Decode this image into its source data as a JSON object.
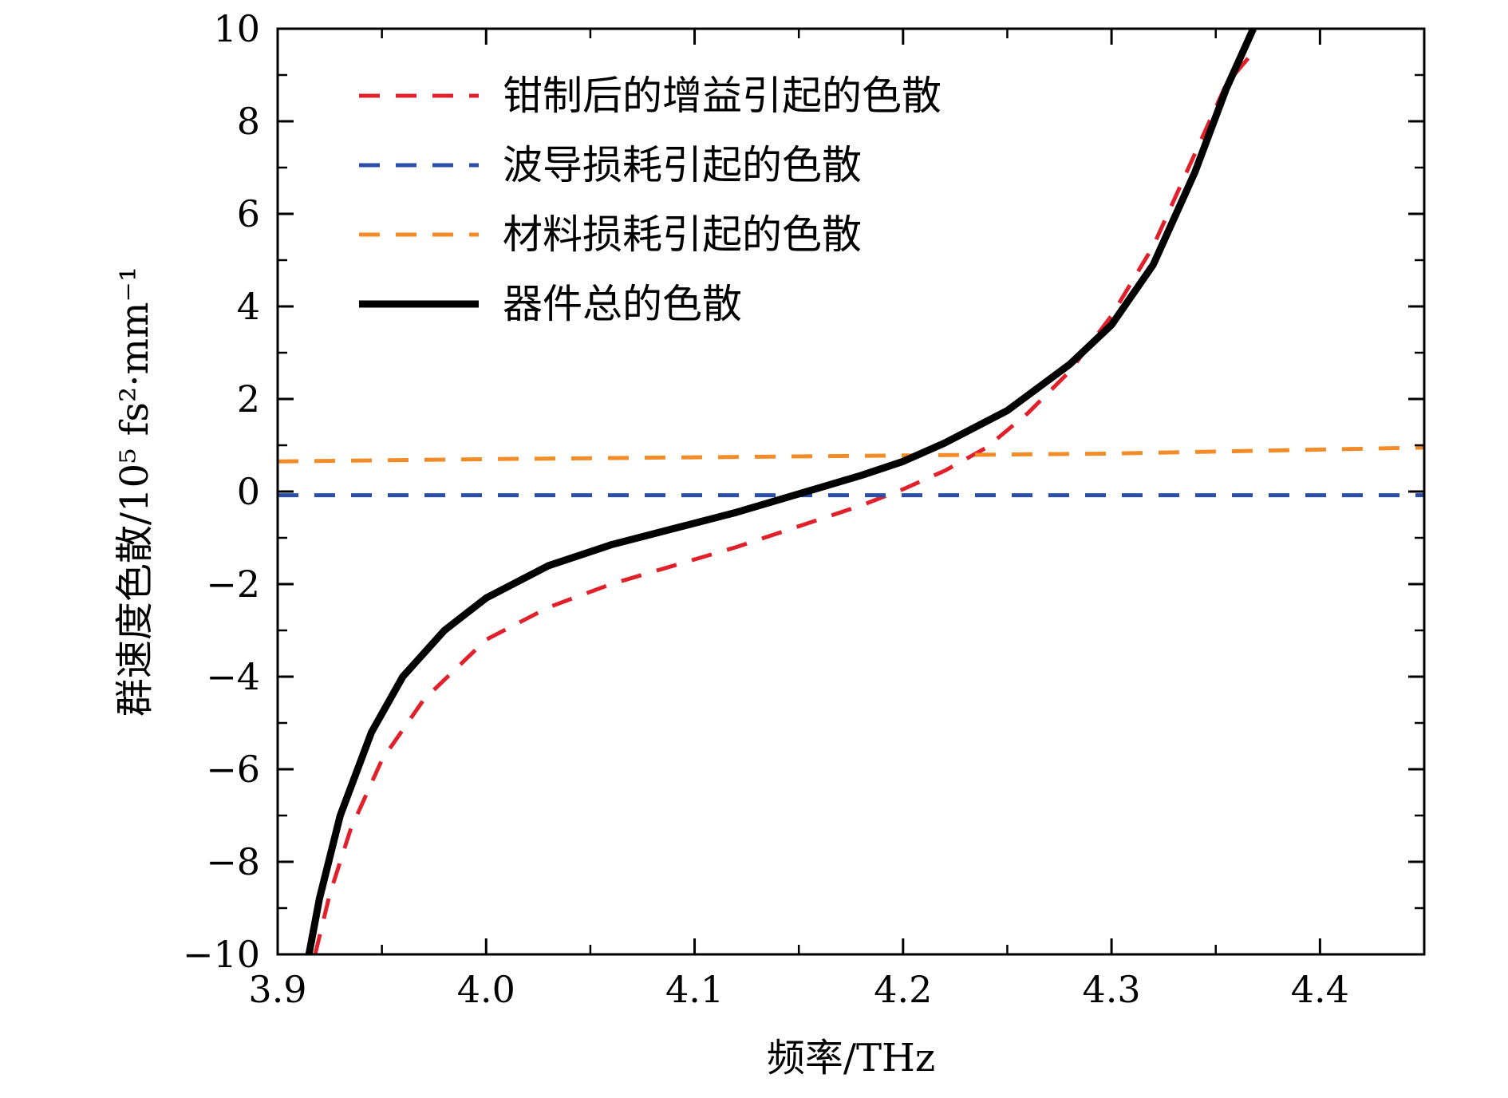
{
  "chart_data": {
    "type": "line",
    "xlabel": "频率/THz",
    "ylabel": "群速度色散/10⁵ fs²·mm⁻¹",
    "xlim": [
      3.9,
      4.45
    ],
    "ylim": [
      -10,
      10
    ],
    "x_ticks": [
      3.9,
      4.0,
      4.1,
      4.2,
      4.3,
      4.4
    ],
    "x_tick_labels": [
      "3.9",
      "4.0",
      "4.1",
      "4.2",
      "4.3",
      "4.4"
    ],
    "y_ticks": [
      -10,
      -8,
      -6,
      -4,
      -2,
      0,
      2,
      4,
      6,
      8,
      10
    ],
    "y_tick_labels": [
      "−10",
      "−8",
      "−6",
      "−4",
      "−2",
      "0",
      "2",
      "4",
      "6",
      "8",
      "10"
    ],
    "grid": false,
    "legend_position": "top-left",
    "series": [
      {
        "name": "钳制后的增益引起的色散",
        "color": "#e0212b",
        "style": "dashed",
        "x": [
          3.918,
          3.925,
          3.935,
          3.95,
          3.97,
          4.0,
          4.03,
          4.06,
          4.09,
          4.12,
          4.15,
          4.18,
          4.2,
          4.22,
          4.24,
          4.26,
          4.28,
          4.3,
          4.32,
          4.34,
          4.355,
          4.37
        ],
        "y": [
          -10.0,
          -8.7,
          -7.3,
          -5.8,
          -4.5,
          -3.2,
          -2.5,
          -2.0,
          -1.6,
          -1.2,
          -0.75,
          -0.3,
          0.05,
          0.45,
          0.95,
          1.7,
          2.6,
          3.8,
          5.3,
          7.3,
          8.8,
          9.6
        ]
      },
      {
        "name": "波导损耗引起的色散",
        "color": "#2b4fa8",
        "style": "dashed",
        "x": [
          3.9,
          4.45
        ],
        "y": [
          -0.08,
          -0.08
        ]
      },
      {
        "name": "材料损耗引起的色散",
        "color": "#f28c28",
        "style": "dashed",
        "x": [
          3.9,
          4.0,
          4.1,
          4.2,
          4.3,
          4.45
        ],
        "y": [
          0.65,
          0.7,
          0.74,
          0.78,
          0.82,
          0.95
        ]
      },
      {
        "name": "器件总的色散",
        "color": "#000000",
        "style": "solid",
        "x": [
          3.915,
          3.92,
          3.93,
          3.945,
          3.96,
          3.98,
          4.0,
          4.03,
          4.06,
          4.09,
          4.12,
          4.15,
          4.18,
          4.2,
          4.22,
          4.25,
          4.28,
          4.3,
          4.32,
          4.34,
          4.355,
          4.368
        ],
        "y": [
          -10.0,
          -8.8,
          -7.0,
          -5.2,
          -4.0,
          -3.0,
          -2.3,
          -1.6,
          -1.15,
          -0.8,
          -0.45,
          -0.05,
          0.35,
          0.65,
          1.05,
          1.75,
          2.75,
          3.6,
          4.9,
          6.9,
          8.7,
          10.0
        ]
      }
    ]
  }
}
